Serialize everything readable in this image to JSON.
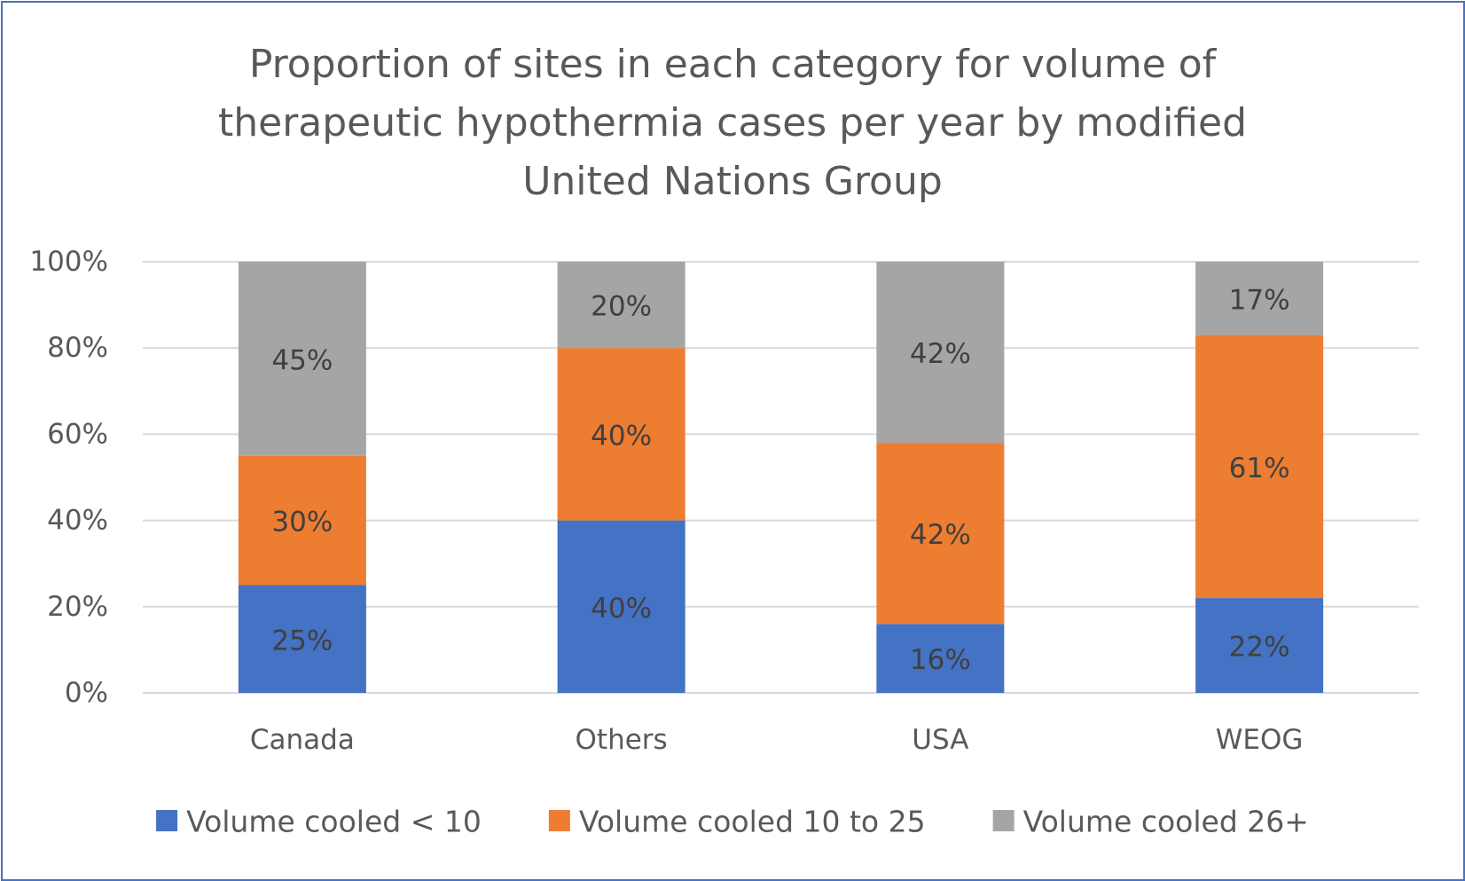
{
  "chart_data": {
    "type": "bar",
    "stacked": true,
    "title_lines": [
      "Proportion of sites in each category for volume of",
      "therapeutic hypothermia cases per year by modified",
      "United Nations Group"
    ],
    "categories": [
      "Canada",
      "Others",
      "USA",
      "WEOG"
    ],
    "series": [
      {
        "name": "Volume cooled < 10",
        "color": "#4472c4",
        "values": [
          25,
          40,
          16,
          22
        ],
        "labels": [
          "25%",
          "40%",
          "16%",
          "22%"
        ]
      },
      {
        "name": "Volume cooled 10 to 25",
        "color": "#ed7d31",
        "values": [
          30,
          40,
          42,
          61
        ],
        "labels": [
          "30%",
          "40%",
          "42%",
          "61%"
        ]
      },
      {
        "name": "Volume cooled 26+",
        "color": "#a5a5a5",
        "values": [
          45,
          20,
          42,
          17
        ],
        "labels": [
          "45%",
          "20%",
          "42%",
          "17%"
        ]
      }
    ],
    "y_ticks": [
      "0%",
      "20%",
      "40%",
      "60%",
      "80%",
      "100%"
    ],
    "ylim": [
      0,
      100
    ],
    "grid": true,
    "legend_position": "bottom",
    "frame_color": "#4472c4",
    "grid_color": "#d9d9d9"
  }
}
